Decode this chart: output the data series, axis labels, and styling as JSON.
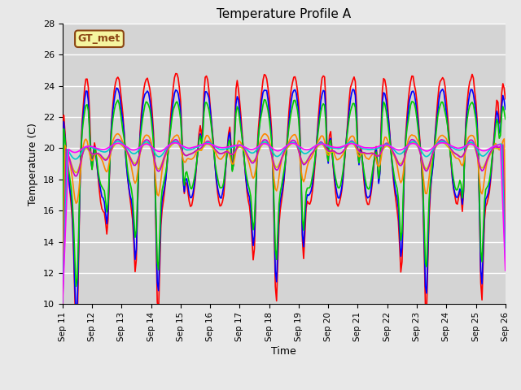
{
  "title": "Temperature Profile A",
  "xlabel": "Time",
  "ylabel": "Temperature (C)",
  "ylim": [
    10,
    28
  ],
  "xlim": [
    0,
    360
  ],
  "facecolor": "#e8e8e8",
  "axbg": "#d4d4d4",
  "grid_color": "#ffffff",
  "annotation_text": "GT_met",
  "annotation_color": "#8B4513",
  "annotation_bg": "#f5f5a0",
  "series_colors": {
    "+45cm": "#ff0000",
    "+30cm": "#0000ff",
    "+15cm": "#00cc00",
    "+5cm": "#ff8800",
    "0cm": "#cccc00",
    "-2cm": "#cc00cc",
    "-8cm": "#00cccc",
    "-16cm": "#ff00ff"
  },
  "xtick_labels": [
    "Sep 11",
    "Sep 12",
    "Sep 13",
    "Sep 14",
    "Sep 15",
    "Sep 16",
    "Sep 17",
    "Sep 18",
    "Sep 19",
    "Sep 20",
    "Sep 21",
    "Sep 22",
    "Sep 23",
    "Sep 24",
    "Sep 25",
    "Sep 26"
  ],
  "xtick_positions": [
    0,
    24,
    48,
    72,
    96,
    120,
    144,
    168,
    192,
    216,
    240,
    264,
    288,
    312,
    336,
    360
  ],
  "ytick_positions": [
    10,
    12,
    14,
    16,
    18,
    20,
    22,
    24,
    26,
    28
  ],
  "lw": 1.2
}
